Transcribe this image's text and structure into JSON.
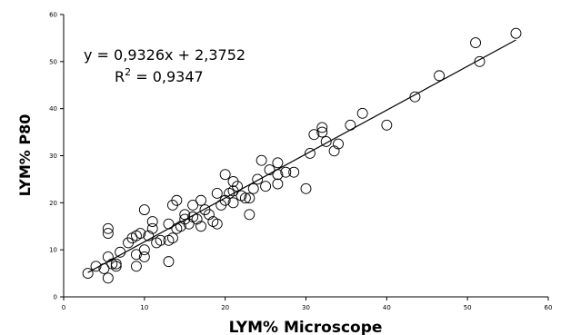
{
  "chart_data": {
    "type": "scatter",
    "xlabel": "LYM% Microscope",
    "ylabel": "LYM% P80",
    "xlim": [
      0,
      60
    ],
    "ylim": [
      0,
      60
    ],
    "xticks": [
      "0",
      "10",
      "20",
      "30",
      "40",
      "50",
      "60"
    ],
    "yticks": [
      "0",
      "10",
      "20",
      "30",
      "40",
      "50",
      "60"
    ],
    "grid": false,
    "annotations": {
      "equation": "y = 0,9326x + 2,3752",
      "r2_label": "R",
      "r2_sup": "2",
      "r2_value": " = 0,9347"
    },
    "trendline": {
      "slope": 0.9326,
      "intercept": 2.3752,
      "x_range": [
        3,
        56
      ]
    },
    "points": [
      [
        3,
        5
      ],
      [
        4,
        6.5
      ],
      [
        5,
        6
      ],
      [
        5.5,
        4
      ],
      [
        5.5,
        8.5
      ],
      [
        5.5,
        13.5
      ],
      [
        5.5,
        14.5
      ],
      [
        6,
        7
      ],
      [
        6.5,
        6.5
      ],
      [
        6.5,
        7
      ],
      [
        7,
        9.5
      ],
      [
        8,
        11.5
      ],
      [
        8.5,
        12.5
      ],
      [
        9,
        13
      ],
      [
        9,
        6.5
      ],
      [
        9,
        9
      ],
      [
        9.5,
        13.5
      ],
      [
        10,
        8.5
      ],
      [
        10,
        18.5
      ],
      [
        10,
        10
      ],
      [
        10.5,
        13
      ],
      [
        11,
        14.5
      ],
      [
        11,
        16
      ],
      [
        11.5,
        11.5
      ],
      [
        12,
        12
      ],
      [
        13,
        7.5
      ],
      [
        13,
        12
      ],
      [
        13,
        15.5
      ],
      [
        13.5,
        12.5
      ],
      [
        13.5,
        19.5
      ],
      [
        14,
        20.5
      ],
      [
        14,
        14.5
      ],
      [
        14.5,
        15
      ],
      [
        15,
        17.5
      ],
      [
        15,
        16.5
      ],
      [
        15.5,
        15.5
      ],
      [
        16,
        19.5
      ],
      [
        16,
        17
      ],
      [
        16.5,
        16.5
      ],
      [
        17,
        15
      ],
      [
        17,
        20.5
      ],
      [
        17.5,
        18.5
      ],
      [
        18,
        17.5
      ],
      [
        18.5,
        16
      ],
      [
        19,
        22
      ],
      [
        19,
        15.5
      ],
      [
        19.5,
        19.5
      ],
      [
        20,
        20.5
      ],
      [
        20,
        26
      ],
      [
        20.5,
        22
      ],
      [
        21,
        22.5
      ],
      [
        21,
        24.5
      ],
      [
        21,
        20
      ],
      [
        21.5,
        23.5
      ],
      [
        22,
        21.5
      ],
      [
        22.5,
        21
      ],
      [
        23,
        21
      ],
      [
        23,
        17.5
      ],
      [
        23.5,
        23
      ],
      [
        24,
        25
      ],
      [
        24.5,
        29
      ],
      [
        25,
        23.5
      ],
      [
        25.5,
        27
      ],
      [
        26.5,
        26
      ],
      [
        26.5,
        28.5
      ],
      [
        26.5,
        24
      ],
      [
        27.5,
        26.5
      ],
      [
        28.5,
        26.5
      ],
      [
        30,
        23
      ],
      [
        30.5,
        30.5
      ],
      [
        31,
        34.5
      ],
      [
        32,
        35
      ],
      [
        32,
        36
      ],
      [
        32.5,
        33
      ],
      [
        33.5,
        31
      ],
      [
        34,
        32.5
      ],
      [
        35.5,
        36.5
      ],
      [
        37,
        39
      ],
      [
        40,
        36.5
      ],
      [
        43.5,
        42.5
      ],
      [
        46.5,
        47
      ],
      [
        51,
        54
      ],
      [
        51.5,
        50
      ],
      [
        56,
        56
      ]
    ]
  }
}
